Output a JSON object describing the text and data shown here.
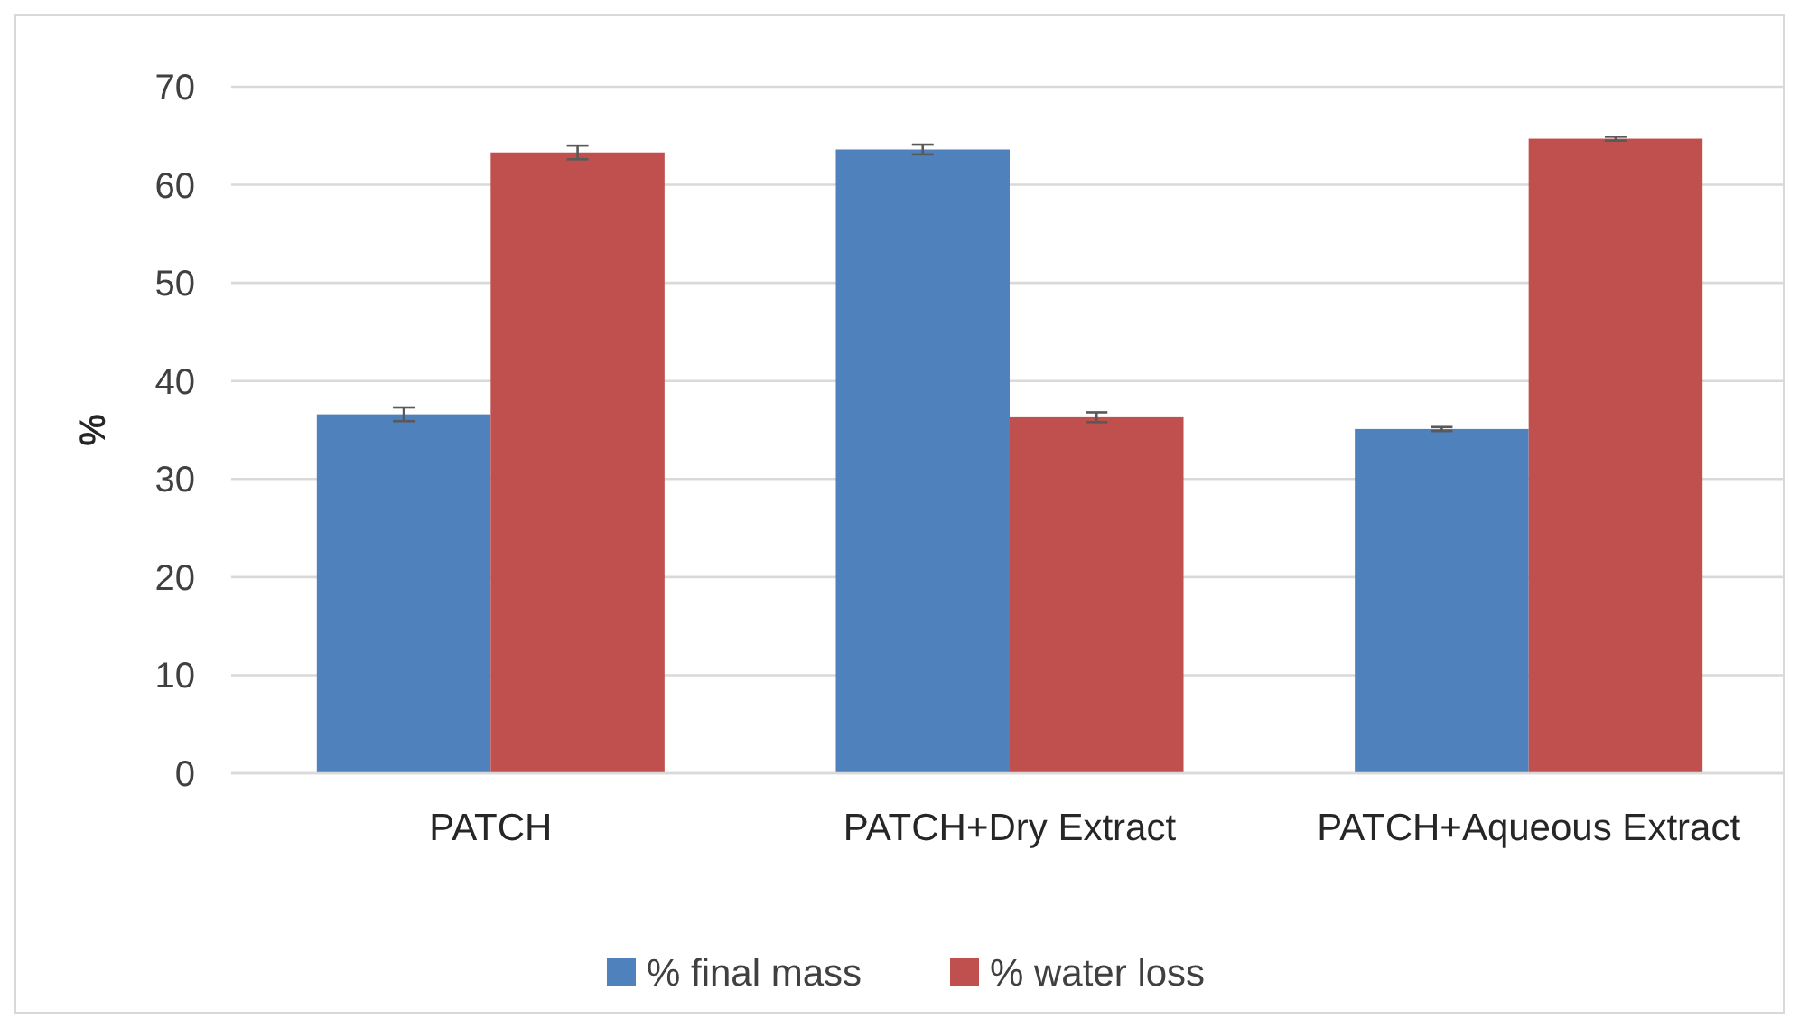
{
  "chart_data": {
    "type": "bar",
    "ylabel": "%",
    "categories": [
      "PATCH",
      "PATCH+Dry Extract",
      "PATCH+Aqueous Extract"
    ],
    "series": [
      {
        "name": "% final mass",
        "color": "#4f81bd",
        "values": [
          36.6,
          63.6,
          35.1
        ],
        "errors": [
          0.7,
          0.5,
          0.2
        ]
      },
      {
        "name": "% water loss",
        "color": "#c0504d",
        "values": [
          63.3,
          36.3,
          64.7
        ],
        "errors": [
          0.7,
          0.5,
          0.2
        ]
      }
    ],
    "ylim": [
      0,
      70
    ],
    "yticks": [
      0,
      10,
      20,
      30,
      40,
      50,
      60,
      70
    ],
    "grid": "y",
    "legend": "bottom"
  }
}
